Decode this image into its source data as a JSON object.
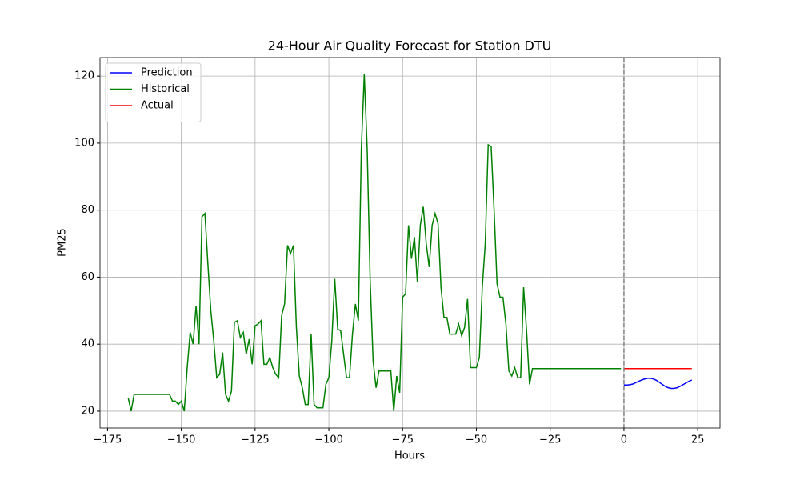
{
  "chart_data": {
    "type": "line",
    "title": "24-Hour Air Quality Forecast for Station DTU",
    "x_label": "Hours",
    "y_label": "PM25",
    "xlim": [
      -177.55,
      32.55
    ],
    "ylim": [
      14.975,
      125.525
    ],
    "xticks": [
      {
        "value": -175,
        "label": "−175"
      },
      {
        "value": -150,
        "label": "−150"
      },
      {
        "value": -125,
        "label": "−125"
      },
      {
        "value": -100,
        "label": "−100"
      },
      {
        "value": -75,
        "label": "−75"
      },
      {
        "value": -50,
        "label": "−50"
      },
      {
        "value": -25,
        "label": "−25"
      },
      0,
      25
    ],
    "yticks": [
      20,
      40,
      60,
      80,
      100,
      120
    ],
    "grid": true,
    "legend": "upper left",
    "vline": {
      "x": 0,
      "color": "#808080",
      "style": "dashed"
    },
    "series": [
      {
        "name": "Prediction",
        "color": "#0000ff",
        "x": [
          0,
          1,
          2,
          3,
          4,
          5,
          6,
          7,
          8,
          9,
          10,
          11,
          12,
          13,
          14,
          15,
          16,
          17,
          18,
          19,
          20,
          21,
          22,
          23
        ],
        "values": [
          27.8,
          27.8,
          27.9,
          28.1,
          28.5,
          28.9,
          29.3,
          29.6,
          29.8,
          29.8,
          29.6,
          29.2,
          28.6,
          28.0,
          27.4,
          27.0,
          26.8,
          26.8,
          27.0,
          27.4,
          27.9,
          28.4,
          28.9,
          29.3
        ]
      },
      {
        "name": "Historical",
        "color": "#008000",
        "x": [
          -168,
          -167,
          -166,
          -165,
          -164,
          -163,
          -162,
          -161,
          -160,
          -159,
          -158,
          -157,
          -156,
          -155,
          -154,
          -153,
          -152,
          -151,
          -150,
          -149,
          -148,
          -147,
          -146,
          -145,
          -144,
          -143,
          -142,
          -141,
          -140,
          -139,
          -138,
          -137,
          -136,
          -135,
          -134,
          -133,
          -132,
          -131,
          -130,
          -129,
          -128,
          -127,
          -126,
          -125,
          -124,
          -123,
          -122,
          -121,
          -120,
          -119,
          -118,
          -117,
          -116,
          -115,
          -114,
          -113,
          -112,
          -111,
          -110,
          -109,
          -108,
          -107,
          -106,
          -105,
          -104,
          -103,
          -102,
          -101,
          -100,
          -99,
          -98,
          -97,
          -96,
          -95,
          -94,
          -93,
          -92,
          -91,
          -90,
          -89,
          -88,
          -87,
          -86,
          -85,
          -84,
          -83,
          -82,
          -81,
          -80,
          -79,
          -78,
          -77,
          -76,
          -75,
          -74,
          -73,
          -72,
          -71,
          -70,
          -69,
          -68,
          -67,
          -66,
          -65,
          -64,
          -63,
          -62,
          -61,
          -60,
          -59,
          -58,
          -57,
          -56,
          -55,
          -54,
          -53,
          -52,
          -51,
          -50,
          -49,
          -48,
          -47,
          -46,
          -45,
          -44,
          -43,
          -42,
          -41,
          -40,
          -39,
          -38,
          -37,
          -36,
          -35,
          -34,
          -33,
          -32,
          -31,
          -30,
          -29,
          -28,
          -27,
          -26,
          -25,
          -24,
          -23,
          -22,
          -21,
          -20,
          -19,
          -18,
          -17,
          -16,
          -15,
          -14,
          -13,
          -12,
          -11,
          -10,
          -9,
          -8,
          -7,
          -6,
          -5,
          -4,
          -3,
          -2,
          -1
        ],
        "values": [
          24,
          20,
          25,
          25,
          25,
          25,
          25,
          25,
          25,
          25,
          25,
          25,
          25,
          25,
          25,
          23,
          23,
          22,
          23,
          20,
          33,
          43.5,
          40,
          51.5,
          40,
          78,
          79,
          64,
          50,
          41,
          30,
          31,
          37.5,
          25,
          23,
          26,
          46.5,
          47,
          42,
          43.5,
          37,
          41.5,
          34,
          45.5,
          46,
          47,
          34,
          34,
          36,
          33,
          31,
          30,
          48.5,
          52,
          69.5,
          67,
          69.5,
          45,
          30.5,
          27,
          22,
          22,
          43,
          22,
          21,
          21,
          21,
          28,
          30,
          41,
          59.5,
          44.5,
          44,
          37,
          30,
          30,
          43,
          52,
          47,
          98,
          120.5,
          98,
          59,
          35,
          27,
          32,
          32,
          32,
          32,
          32,
          20,
          30.5,
          25.5,
          54,
          55,
          75.5,
          65.5,
          72,
          58.5,
          75.5,
          81,
          70,
          63,
          75.5,
          79,
          76,
          57,
          48,
          48,
          43,
          43,
          43,
          46,
          42.5,
          45,
          53.5,
          33,
          33,
          33,
          36,
          57,
          70,
          99.5,
          99,
          80,
          58,
          54,
          54,
          46,
          32,
          30.5,
          33,
          30,
          30,
          57,
          44,
          28,
          32.7,
          32.7,
          32.7,
          32.7,
          32.7,
          32.7,
          32.7,
          32.7,
          32.7,
          32.7,
          32.7,
          32.7,
          32.7,
          32.7,
          32.7,
          32.7,
          32.7,
          32.7,
          32.7,
          32.7,
          32.7,
          32.7,
          32.7,
          32.7,
          32.7,
          32.7,
          32.7,
          32.7,
          32.7,
          32.7,
          32.7
        ]
      },
      {
        "name": "Actual",
        "color": "#ff0000",
        "x": [
          0,
          1,
          2,
          3,
          4,
          5,
          6,
          7,
          8,
          9,
          10,
          11,
          12,
          13,
          14,
          15,
          16,
          17,
          18,
          19,
          20,
          21,
          22,
          23
        ],
        "values": [
          32.7,
          32.7,
          32.7,
          32.7,
          32.7,
          32.7,
          32.7,
          32.7,
          32.7,
          32.7,
          32.7,
          32.7,
          32.7,
          32.7,
          32.7,
          32.7,
          32.7,
          32.7,
          32.7,
          32.7,
          32.7,
          32.7,
          32.7,
          32.7
        ]
      }
    ]
  }
}
